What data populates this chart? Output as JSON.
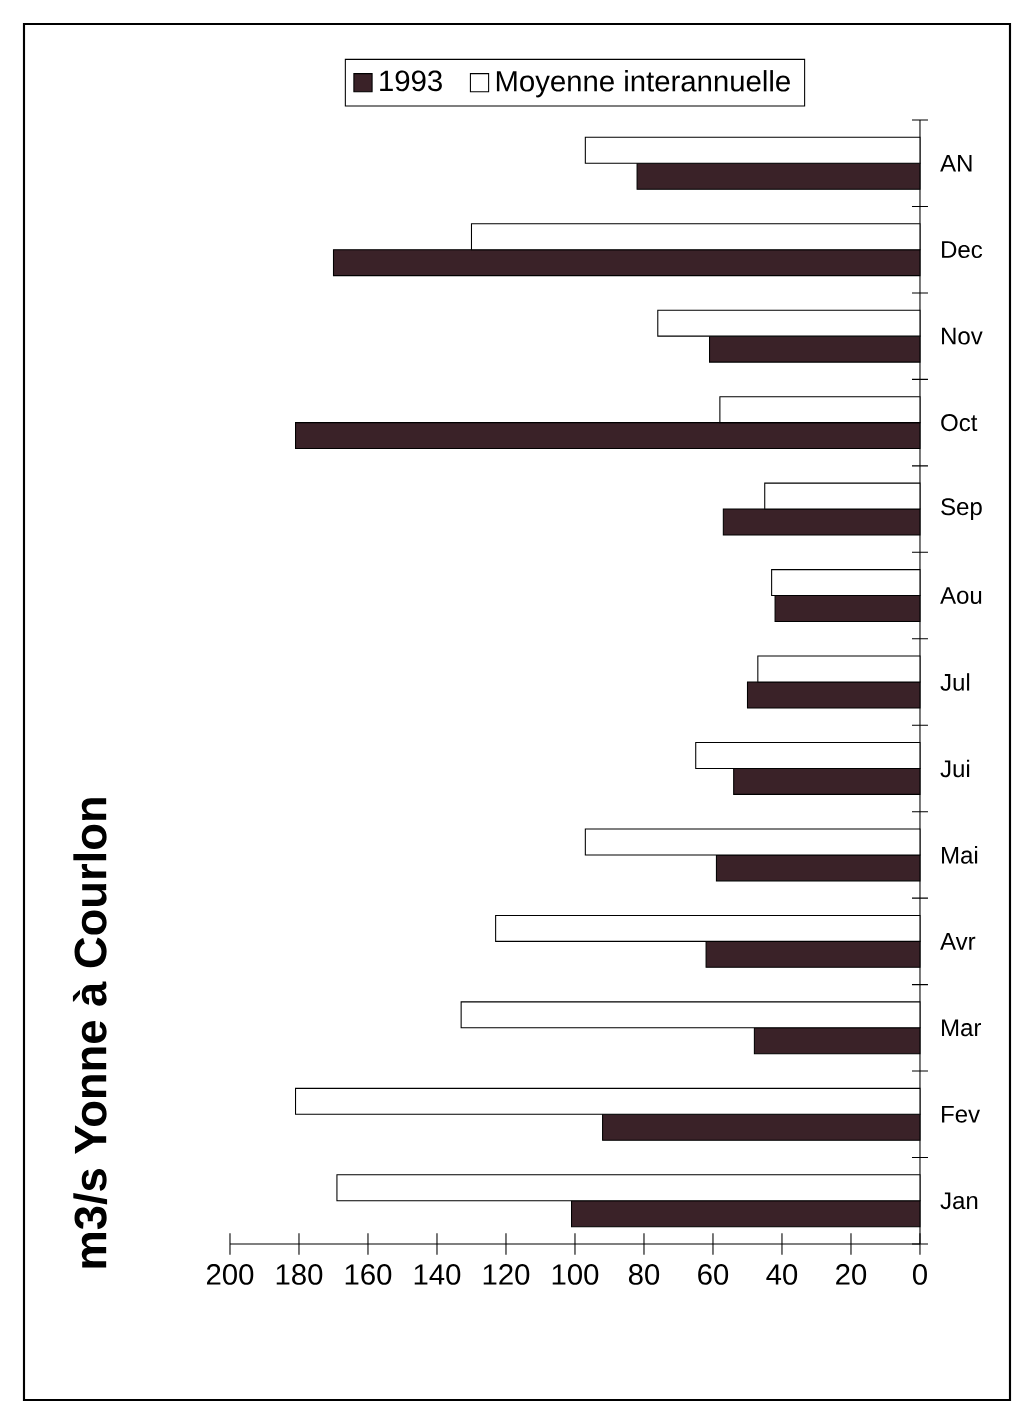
{
  "chart_data": {
    "type": "bar",
    "orientation": "horizontal",
    "title": "m3/s Yonne à Courlon",
    "categories": [
      "AN",
      "Dec",
      "Nov",
      "Oct",
      "Sep",
      "Aou",
      "Jul",
      "Jui",
      "Mai",
      "Avr",
      "Mar",
      "Fev",
      "Jan"
    ],
    "series": [
      {
        "name": "1993",
        "color": "#3a2228",
        "values": [
          82,
          170,
          61,
          181,
          57,
          42,
          50,
          54,
          59,
          62,
          48,
          92,
          101
        ]
      },
      {
        "name": "Moyenne interannuelle",
        "color": "#ffffff",
        "values": [
          97,
          130,
          76,
          58,
          45,
          43,
          47,
          65,
          97,
          123,
          133,
          181,
          169
        ]
      }
    ],
    "xlim": [
      200,
      0
    ],
    "xticks": [
      0,
      20,
      40,
      60,
      80,
      100,
      120,
      140,
      160,
      180,
      200
    ],
    "legend": "top"
  }
}
